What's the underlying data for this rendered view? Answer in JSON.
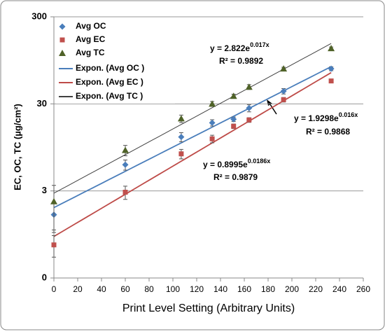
{
  "chart_data": {
    "type": "scatter",
    "y_label": "EC, OC, TC  (µg/cm²)",
    "x_label": "Print Level Setting (Arbitrary Units)",
    "xlim": [
      0,
      260
    ],
    "xticks": [
      0,
      20,
      40,
      60,
      80,
      100,
      120,
      140,
      160,
      180,
      200,
      220,
      240,
      260
    ],
    "ylim": [
      0.3,
      300
    ],
    "yticks": [
      {
        "value": 0.3,
        "label": "0"
      },
      3,
      30,
      300
    ],
    "log_y": true,
    "grid": true,
    "legend": "top-left",
    "x": [
      0,
      60,
      107,
      133,
      151,
      164,
      193,
      233
    ],
    "series": [
      {
        "name": "Avg OC",
        "color": "#4a7ebb",
        "marker": "diamond",
        "values": [
          1.6,
          6.0,
          12.5,
          18.2,
          20,
          26.8,
          41.9,
          76
        ],
        "errors": [
          0.6,
          0.8,
          1.5,
          1.5,
          1.2,
          2.5,
          3,
          4
        ]
      },
      {
        "name": "Avg EC",
        "color": "#c0504d",
        "marker": "square",
        "values": [
          0.72,
          2.9,
          8.0,
          11.9,
          16.6,
          19.6,
          33.5,
          55
        ],
        "errors": [
          0.2,
          0.5,
          1.0,
          1.2,
          1.0,
          1.2,
          2,
          2
        ]
      },
      {
        "name": "Avg TC",
        "color": "#4f6228",
        "marker": "triangle",
        "values": [
          2.27,
          8.8,
          20.3,
          30,
          36.8,
          46.9,
          76,
          130
        ],
        "errors": [
          1.2,
          1.2,
          2,
          2,
          2,
          3,
          3,
          5
        ]
      }
    ],
    "trendlines": [
      {
        "name": "Expon. (Avg OC )",
        "color": "#4a7ebb",
        "a": 1.9298,
        "b": 0.016,
        "eq": "y = 1.9298e",
        "eq_exp": "0.016x",
        "r2": "R² = 0.9868"
      },
      {
        "name": "Expon. (Avg EC )",
        "color": "#be4b48",
        "a": 0.8995,
        "b": 0.0186,
        "eq": "y = 0.8995e",
        "eq_exp": "0.0186x",
        "r2": "R² = 0.9879"
      },
      {
        "name": "Expon. (Avg TC )",
        "color": "#404040",
        "a": 2.822,
        "b": 0.017,
        "eq": "y = 2.822e",
        "eq_exp": "0.017x",
        "r2": "R² = 0.9892"
      }
    ]
  }
}
